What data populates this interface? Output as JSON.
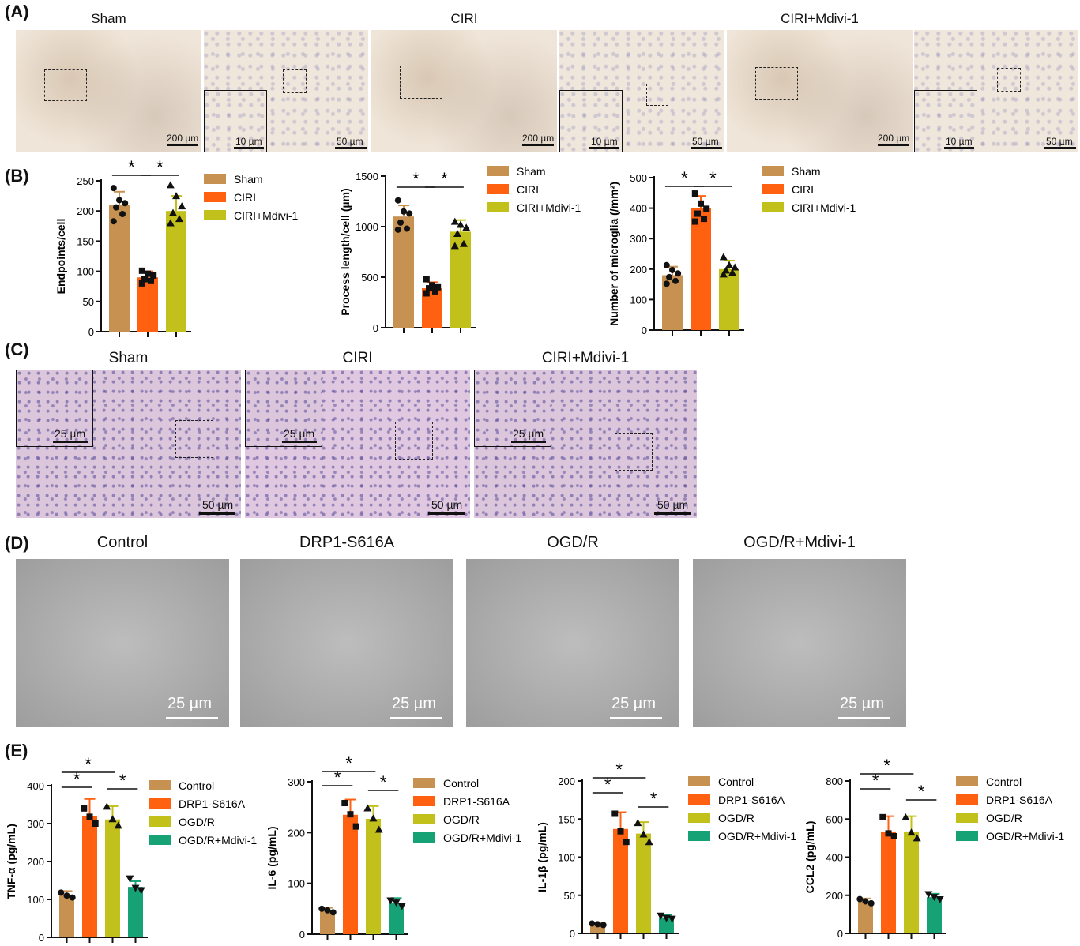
{
  "panels": {
    "A": {
      "letter": "(A)",
      "groups": [
        "Sham",
        "CIRI",
        "CIRI+Mdivi-1"
      ],
      "scale_low": "200 µm",
      "scale_inset": "10 µm",
      "scale_high": "50 µm"
    },
    "C": {
      "letter": "(C)",
      "groups": [
        "Sham",
        "CIRI",
        "CIRI+Mdivi-1"
      ],
      "scale_inset": "25 µm",
      "scale_main": "50 µm"
    },
    "D": {
      "letter": "(D)",
      "groups": [
        "Control",
        "DRP1-S616A",
        "OGD/R",
        "OGD/R+Mdivi-1"
      ],
      "scale": "25 µm"
    },
    "B": {
      "letter": "(B)"
    },
    "E": {
      "letter": "(E)"
    }
  },
  "colors": {
    "sham": "#c69151",
    "ciri": "#ff6110",
    "mdivi": "#c2c01a",
    "ogdr_mdivi": "#17a276"
  },
  "chart_data": [
    {
      "type": "bar",
      "panel": "B",
      "ylabel": "Endpoints/cell",
      "ylim": [
        0,
        250
      ],
      "yticks": [
        0,
        50,
        100,
        150,
        200,
        250
      ],
      "categories": [
        "Sham",
        "CIRI",
        "CIRI+Mdivi-1"
      ],
      "values": [
        210,
        90,
        200
      ],
      "errors": [
        22,
        10,
        25
      ],
      "points": [
        [
          238,
          218,
          213,
          206,
          195,
          183
        ],
        [
          101,
          96,
          93,
          87,
          84,
          80
        ],
        [
          243,
          225,
          208,
          197,
          187,
          180
        ]
      ],
      "markers": [
        "circle",
        "square",
        "triangle"
      ],
      "significance": [
        "*",
        "*"
      ],
      "legend": [
        "Sham",
        "CIRI",
        "CIRI+Mdivi-1"
      ]
    },
    {
      "type": "bar",
      "panel": "B",
      "ylabel": "Process length/cell (µm)",
      "ylim": [
        0,
        1500
      ],
      "yticks": [
        0,
        500,
        1000,
        1500
      ],
      "categories": [
        "Sham",
        "CIRI",
        "CIRI+Mdivi-1"
      ],
      "values": [
        1100,
        390,
        950
      ],
      "errors": [
        110,
        60,
        115
      ],
      "points": [
        [
          1260,
          1150,
          1130,
          1040,
          980,
          970
        ],
        [
          480,
          420,
          400,
          390,
          360,
          340
        ],
        [
          1050,
          1020,
          990,
          930,
          830,
          810
        ]
      ],
      "markers": [
        "circle",
        "square",
        "triangle"
      ],
      "significance": [
        "*",
        "*"
      ],
      "legend": [
        "Sham",
        "CIRI",
        "CIRI+Mdivi-1"
      ]
    },
    {
      "type": "bar",
      "panel": "B",
      "ylabel": "Number of microglia (/mm²)",
      "ylim": [
        0,
        500
      ],
      "yticks": [
        0,
        100,
        200,
        300,
        400,
        500
      ],
      "categories": [
        "Sham",
        "CIRI",
        "CIRI+Mdivi-1"
      ],
      "values": [
        180,
        400,
        200
      ],
      "errors": [
        28,
        40,
        28
      ],
      "points": [
        [
          213,
          197,
          186,
          174,
          161,
          152
        ],
        [
          448,
          415,
          398,
          382,
          365,
          356
        ],
        [
          240,
          213,
          206,
          196,
          188,
          183
        ]
      ],
      "markers": [
        "circle",
        "square",
        "triangle"
      ],
      "significance": [
        "*",
        "*"
      ],
      "legend": [
        "Sham",
        "CIRI",
        "CIRI+Mdivi-1"
      ]
    },
    {
      "type": "bar",
      "panel": "E",
      "ylabel": "TNF-α (pg/mL)",
      "ylim": [
        0,
        400
      ],
      "yticks": [
        0,
        100,
        200,
        300,
        400
      ],
      "categories": [
        "Control",
        "DRP1-S616A",
        "OGD/R",
        "OGD/R+Mdivi-1"
      ],
      "values": [
        112,
        320,
        311,
        133
      ],
      "errors": [
        10,
        45,
        35,
        15
      ],
      "points": [
        [
          118,
          110,
          105
        ],
        [
          340,
          318,
          300
        ],
        [
          345,
          312,
          295
        ],
        [
          155,
          130,
          124
        ]
      ],
      "markers": [
        "circle",
        "square",
        "triangle",
        "triangle-down"
      ],
      "significance": [
        "*",
        "*",
        "*"
      ],
      "legend": [
        "Control",
        "DRP1-S616A",
        "OGD/R",
        "OGD/R+Mdivi-1"
      ]
    },
    {
      "type": "bar",
      "panel": "E",
      "ylabel": "IL-6 (pg/mL)",
      "ylim": [
        0,
        300
      ],
      "yticks": [
        0,
        100,
        200,
        300
      ],
      "categories": [
        "Control",
        "DRP1-S616A",
        "OGD/R",
        "OGD/R+Mdivi-1"
      ],
      "values": [
        47,
        235,
        227,
        61
      ],
      "errors": [
        5,
        30,
        25,
        10
      ],
      "points": [
        [
          50,
          47,
          43
        ],
        [
          258,
          236,
          212
        ],
        [
          248,
          228,
          206
        ],
        [
          66,
          62,
          55
        ]
      ],
      "markers": [
        "circle",
        "square",
        "triangle",
        "triangle-down"
      ],
      "significance": [
        "*",
        "*",
        "*"
      ],
      "legend": [
        "Control",
        "DRP1-S616A",
        "OGD/R",
        "OGD/R+Mdivi-1"
      ]
    },
    {
      "type": "bar",
      "panel": "E",
      "ylabel": "IL-1β (pg/mL)",
      "ylim": [
        0,
        200
      ],
      "yticks": [
        0,
        50,
        100,
        150,
        200
      ],
      "categories": [
        "Control",
        "DRP1-S616A",
        "OGD/R",
        "OGD/R+Mdivi-1"
      ],
      "values": [
        12,
        137,
        131,
        21
      ],
      "errors": [
        2,
        22,
        15,
        3
      ],
      "points": [
        [
          13,
          12,
          11
        ],
        [
          157,
          134,
          120
        ],
        [
          145,
          130,
          120
        ],
        [
          23,
          20,
          19
        ]
      ],
      "markers": [
        "circle",
        "square",
        "triangle",
        "triangle-down"
      ],
      "significance": [
        "*",
        "*",
        "*"
      ],
      "legend": [
        "Control",
        "DRP1-S616A",
        "OGD/R",
        "OGD/R+Mdivi-1"
      ]
    },
    {
      "type": "bar",
      "panel": "E",
      "ylabel": "CCL2 (pg/mL)",
      "ylim": [
        0,
        800
      ],
      "yticks": [
        0,
        200,
        400,
        600,
        800
      ],
      "categories": [
        "Control",
        "DRP1-S616A",
        "OGD/R",
        "OGD/R+Mdivi-1"
      ],
      "values": [
        168,
        535,
        535,
        190
      ],
      "errors": [
        15,
        80,
        80,
        18
      ],
      "points": [
        [
          180,
          168,
          158
        ],
        [
          610,
          525,
          510
        ],
        [
          610,
          530,
          500
        ],
        [
          205,
          190,
          178
        ]
      ],
      "markers": [
        "circle",
        "square",
        "triangle",
        "triangle-down"
      ],
      "significance": [
        "*",
        "*",
        "*"
      ],
      "legend": [
        "Control",
        "DRP1-S616A",
        "OGD/R",
        "OGD/R+Mdivi-1"
      ]
    }
  ]
}
